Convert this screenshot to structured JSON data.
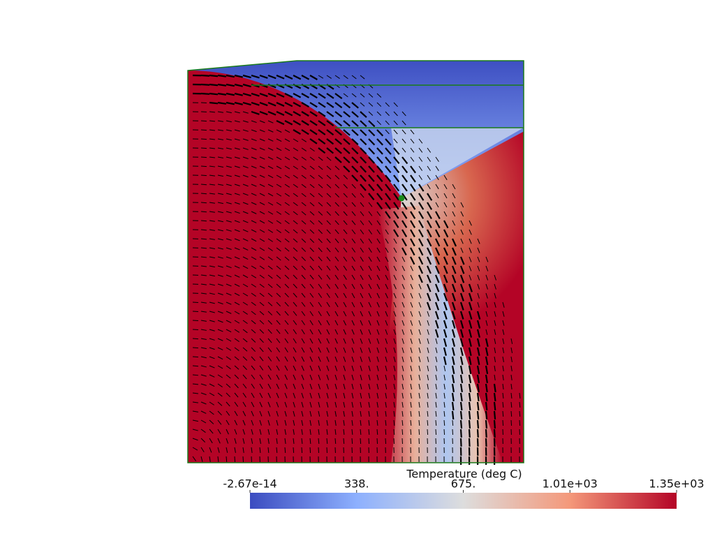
{
  "colorbar": {
    "title": "Temperature (deg C)",
    "range": [
      -2.67e-14,
      1350
    ],
    "ticks": [
      {
        "value": -2.67e-14,
        "label": "-2.67e-14"
      },
      {
        "value": 337.5,
        "label": "338."
      },
      {
        "value": 675,
        "label": "675."
      },
      {
        "value": 1012.5,
        "label": "1.01e+03"
      },
      {
        "value": 1350,
        "label": "1.35e+03"
      }
    ]
  }
}
